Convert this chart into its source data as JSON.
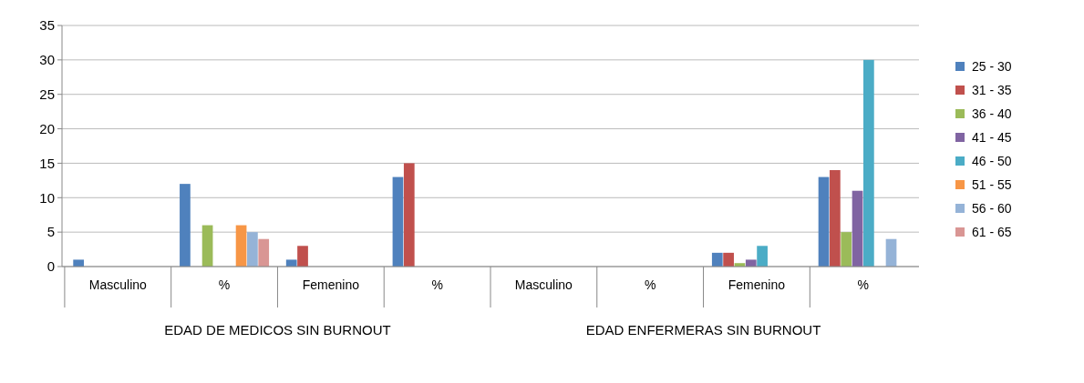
{
  "chart_data": {
    "type": "bar",
    "categories": [
      "Masculino",
      "%",
      "Femenino",
      "%",
      "Masculino",
      "%",
      "Femenino",
      "%"
    ],
    "annotations": [
      "EDAD DE MEDICOS SIN BURNOUT",
      "EDAD ENFERMERAS SIN BURNOUT"
    ],
    "series": [
      {
        "name": "25 - 30",
        "color": "#4f81bd",
        "values": [
          1,
          12,
          1,
          13,
          0,
          0,
          2,
          13
        ]
      },
      {
        "name": "31 - 35",
        "color": "#c0504d",
        "values": [
          0,
          0,
          3,
          15,
          0,
          0,
          2,
          14
        ]
      },
      {
        "name": "36 - 40",
        "color": "#9bbb59",
        "values": [
          0,
          6,
          0,
          0,
          0,
          0,
          0.5,
          5
        ]
      },
      {
        "name": "41 - 45",
        "color": "#8064a2",
        "values": [
          0,
          0,
          0,
          0,
          0,
          0,
          1,
          11
        ]
      },
      {
        "name": "46 - 50",
        "color": "#4bacc6",
        "values": [
          0,
          0,
          0,
          0,
          0,
          0,
          3,
          30
        ]
      },
      {
        "name": "51 - 55",
        "color": "#f79646",
        "values": [
          0,
          6,
          0,
          0,
          0,
          0,
          0,
          0
        ]
      },
      {
        "name": "56 - 60",
        "color": "#95b3d7",
        "values": [
          0,
          5,
          0,
          0,
          0,
          0,
          0,
          4
        ]
      },
      {
        "name": "61 - 65",
        "color": "#d99694",
        "values": [
          0,
          4,
          0,
          0,
          0,
          0,
          0,
          0
        ]
      }
    ],
    "ylim": [
      0,
      35
    ],
    "yticks": [
      0,
      5,
      10,
      15,
      20,
      25,
      30,
      35
    ],
    "grid": "y",
    "legend": "right"
  }
}
